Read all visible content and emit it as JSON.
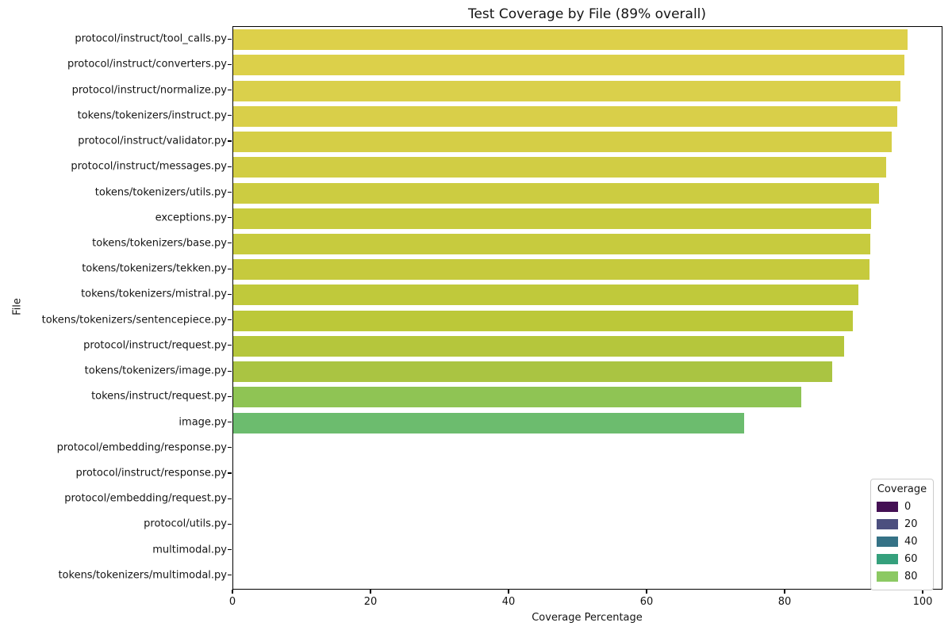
{
  "title": "Test Coverage by File (89% overall)",
  "axes": {
    "xlabel": "Coverage Percentage",
    "ylabel": "File"
  },
  "legend": {
    "title": "Coverage",
    "entries": [
      {
        "label": "0",
        "color": "#441054"
      },
      {
        "label": "20",
        "color": "#4c4f7f"
      },
      {
        "label": "40",
        "color": "#357286"
      },
      {
        "label": "60",
        "color": "#35a07c"
      },
      {
        "label": "80",
        "color": "#8cc963"
      }
    ]
  },
  "chart_data": {
    "type": "bar",
    "orientation": "horizontal",
    "title": "Test Coverage by File (89% overall)",
    "xlabel": "Coverage Percentage",
    "ylabel": "File",
    "xlim": [
      0,
      102.6
    ],
    "x_ticks": [
      0,
      20,
      40,
      60,
      80,
      100
    ],
    "grid": false,
    "legend_position": "lower right",
    "colormap": "viridis",
    "categories": [
      "protocol/instruct/tool_calls.py",
      "protocol/instruct/converters.py",
      "protocol/instruct/normalize.py",
      "tokens/tokenizers/instruct.py",
      "protocol/instruct/validator.py",
      "protocol/instruct/messages.py",
      "tokens/tokenizers/utils.py",
      "exceptions.py",
      "tokens/tokenizers/base.py",
      "tokens/tokenizers/tekken.py",
      "tokens/tokenizers/mistral.py",
      "tokens/tokenizers/sentencepiece.py",
      "protocol/instruct/request.py",
      "tokens/tokenizers/image.py",
      "tokens/instruct/request.py",
      "image.py",
      "protocol/embedding/response.py",
      "protocol/instruct/response.py",
      "protocol/embedding/request.py",
      "protocol/utils.py",
      "multimodal.py",
      "tokens/tokenizers/multimodal.py"
    ],
    "values": [
      97.7,
      97.2,
      96.6,
      96.2,
      95.4,
      94.6,
      93.5,
      92.4,
      92.3,
      92.1,
      90.5,
      89.7,
      88.5,
      86.7,
      82.3,
      74.0,
      0,
      0,
      0,
      0,
      0,
      0
    ],
    "bar_colors": [
      "#ddd04a",
      "#dcd04a",
      "#dad04b",
      "#d9cf49",
      "#d5ce46",
      "#d1cd44",
      "#cccc41",
      "#c8cb3e",
      "#c7cb3e",
      "#c6ca3d",
      "#c0c93b",
      "#bcc839",
      "#b5c63c",
      "#aac442",
      "#8fc454",
      "#6cbc6e",
      "#441054",
      "#441054",
      "#441054",
      "#441054",
      "#441054",
      "#441054"
    ]
  }
}
